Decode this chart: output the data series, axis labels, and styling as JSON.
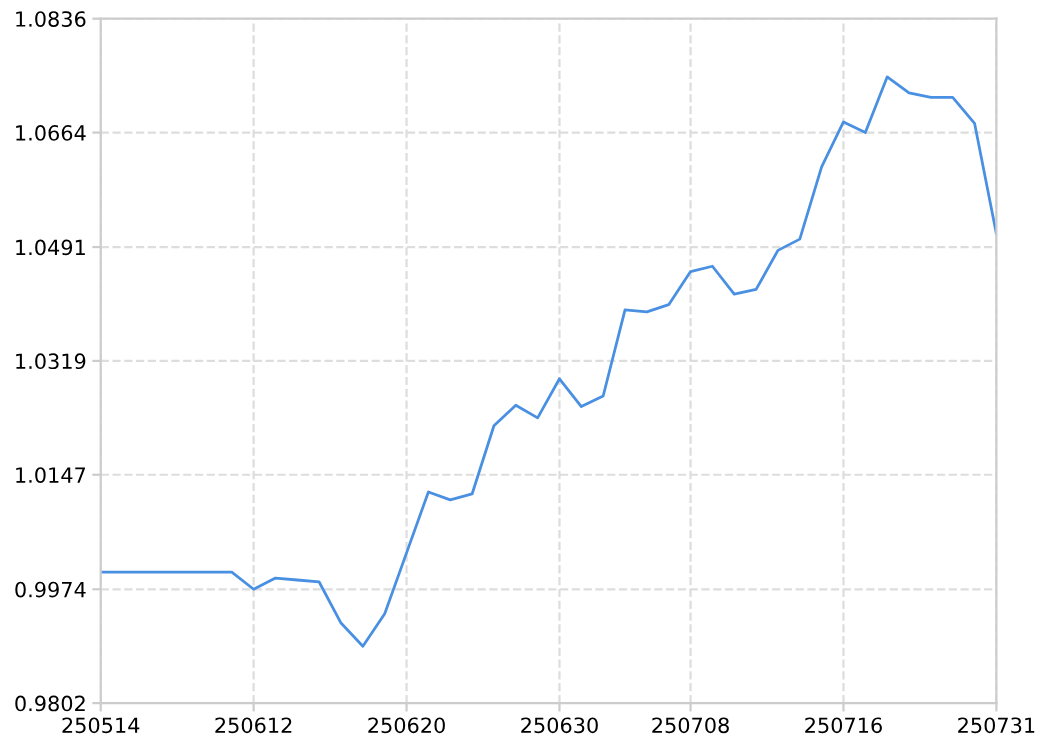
{
  "chart_data": {
    "type": "line",
    "categories": [
      "250514",
      null,
      null,
      null,
      null,
      null,
      null,
      "250612",
      null,
      null,
      null,
      null,
      null,
      null,
      "250620",
      null,
      null,
      null,
      null,
      null,
      null,
      "250630",
      null,
      null,
      null,
      null,
      null,
      "250708",
      null,
      null,
      null,
      null,
      null,
      null,
      "250716",
      null,
      null,
      null,
      null,
      null,
      null,
      "250731"
    ],
    "series": [
      {
        "color": "#4a90e2",
        "values": [
          1.0,
          1.0,
          1.0,
          1.0,
          1.0,
          1.0,
          1.0,
          0.9974,
          0.9991,
          0.9988,
          0.9985,
          0.9923,
          0.9888,
          0.9937,
          1.0029,
          1.0121,
          1.0109,
          1.0118,
          1.0221,
          1.0252,
          1.0233,
          1.0292,
          1.025,
          1.0266,
          1.0396,
          1.0393,
          1.0404,
          1.0454,
          1.0462,
          1.042,
          1.0427,
          1.0486,
          1.0503,
          1.0612,
          1.068,
          1.0664,
          1.0748,
          1.0724,
          1.0717,
          1.0717,
          1.0678,
          1.0511
        ]
      }
    ],
    "ylim": [
      0.9802,
      1.0836
    ],
    "yticks": [
      0.9802,
      0.9974,
      1.0147,
      1.0319,
      1.0491,
      1.0664,
      1.0836
    ],
    "grid": true,
    "marker": "none",
    "line_style": "solid"
  }
}
